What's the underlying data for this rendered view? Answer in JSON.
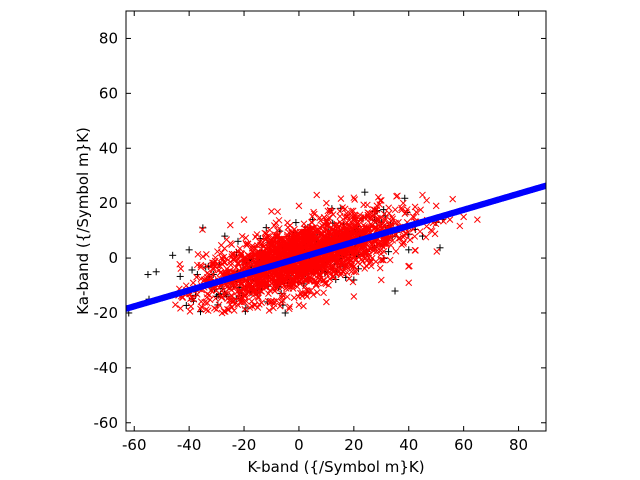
{
  "chart_data": {
    "type": "scatter",
    "title": "",
    "xlabel": "K-band ({/Symbol m}K)",
    "ylabel": "Ka-band ({/Symbol m}K)",
    "xlim": [
      -63,
      90
    ],
    "ylim": [
      -63,
      90
    ],
    "xticks": [
      -60,
      -40,
      -20,
      0,
      20,
      40,
      60,
      80
    ],
    "yticks": [
      -60,
      -40,
      -20,
      0,
      20,
      40,
      60,
      80
    ],
    "grid": false,
    "legend": "none",
    "colors": {
      "black_points": "#000000",
      "red_points": "#ff0000",
      "fit_line": "#0000ff",
      "axes": "#000000"
    },
    "series": [
      {
        "marker": "plus",
        "color": "#000000",
        "description_source": "visible black + markers forming an elongated cloud behind the red one",
        "cloud": {
          "center": [
            0,
            0
          ],
          "x_range": [
            -62,
            55
          ],
          "y_range": [
            -20,
            24
          ],
          "slope": 0.3,
          "count": 260
        },
        "points": [
          [
            -62,
            -20
          ],
          [
            -55,
            -6
          ],
          [
            -52,
            -5
          ],
          [
            -46,
            1
          ],
          [
            -40,
            3
          ],
          [
            -37,
            -6
          ],
          [
            -35,
            11
          ],
          [
            -33,
            -3
          ],
          [
            -30,
            -14
          ],
          [
            -27,
            8
          ],
          [
            24,
            24
          ],
          [
            30,
            13
          ],
          [
            35,
            -12
          ],
          [
            40,
            3
          ],
          [
            45,
            8
          ],
          [
            50,
            13
          ],
          [
            -5,
            -20
          ],
          [
            5,
            14
          ],
          [
            12,
            18
          ],
          [
            20,
            -8
          ]
        ]
      },
      {
        "marker": "x",
        "color": "#ff0000",
        "description_source": "visible red x markers forming the dense main cloud",
        "cloud": {
          "center": [
            0,
            0
          ],
          "x_range": [
            -45,
            65
          ],
          "y_range": [
            -20,
            24
          ],
          "slope": 0.3,
          "count": 2200
        },
        "points": [
          [
            -45,
            -17
          ],
          [
            -40,
            -12
          ],
          [
            -28,
            -20
          ],
          [
            -25,
            12
          ],
          [
            -20,
            14
          ],
          [
            -10,
            17
          ],
          [
            0,
            19
          ],
          [
            10,
            20
          ],
          [
            20,
            22
          ],
          [
            30,
            21
          ],
          [
            38,
            20
          ],
          [
            45,
            23
          ],
          [
            50,
            19
          ],
          [
            55,
            14
          ],
          [
            60,
            15
          ],
          [
            65,
            14
          ],
          [
            40,
            -9
          ],
          [
            30,
            -8
          ],
          [
            20,
            -14
          ],
          [
            10,
            -16
          ],
          [
            0,
            -17
          ],
          [
            -10,
            -16
          ],
          [
            -15,
            -18
          ]
        ]
      },
      {
        "marker": "dot-line",
        "color": "#0000ff",
        "description_source": "visible thick blue fitted line",
        "line": {
          "x_start": -63,
          "x_end": 90,
          "intercept": 0,
          "slope": 0.293
        }
      }
    ]
  }
}
